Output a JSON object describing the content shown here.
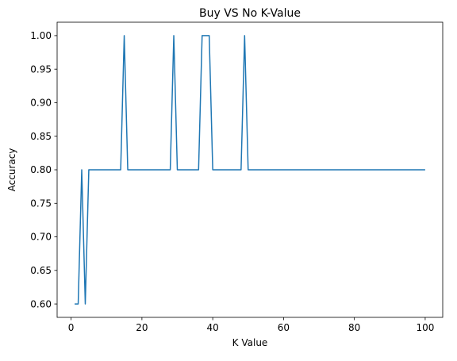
{
  "chart_data": {
    "type": "line",
    "title": "Buy VS No K-Value",
    "xlabel": "K Value",
    "ylabel": "Accuracy",
    "xlim": [
      -3.95,
      104.95
    ],
    "ylim": [
      0.58,
      1.02
    ],
    "xticks": [
      0,
      20,
      40,
      60,
      80,
      100
    ],
    "xtick_labels": [
      "0",
      "20",
      "40",
      "60",
      "80",
      "100"
    ],
    "yticks": [
      0.6,
      0.65,
      0.7,
      0.75,
      0.8,
      0.85,
      0.9,
      0.95,
      1.0
    ],
    "ytick_labels": [
      "0.60",
      "0.65",
      "0.70",
      "0.75",
      "0.80",
      "0.85",
      "0.90",
      "0.95",
      "1.00"
    ],
    "grid": false,
    "series": [
      {
        "color": "#1f77b4",
        "x": [
          1,
          2,
          3,
          4,
          5,
          14,
          15,
          16,
          28,
          29,
          30,
          36,
          37,
          38,
          39,
          40,
          48,
          49,
          50,
          100
        ],
        "y": [
          0.6,
          0.6,
          0.8,
          0.6,
          0.8,
          0.8,
          1.0,
          0.8,
          0.8,
          1.0,
          0.8,
          0.8,
          1.0,
          1.0,
          1.0,
          0.8,
          0.8,
          1.0,
          0.8,
          0.8
        ]
      }
    ]
  }
}
